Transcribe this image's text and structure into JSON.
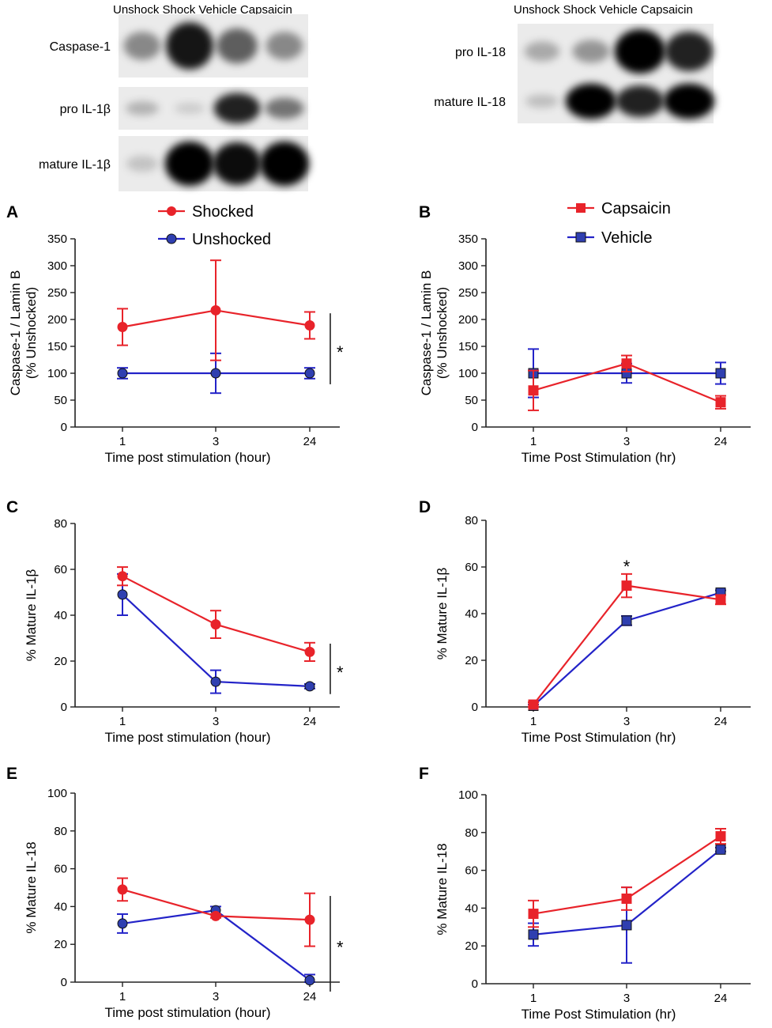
{
  "blots": {
    "left": {
      "lanes": "Unshock Shock  Vehicle Capsaicin",
      "rows": [
        {
          "label": "Caspase-1",
          "bands": [
            0.35,
            0.9,
            0.55,
            0.35
          ]
        },
        {
          "label": "pro IL-1β",
          "bands": [
            0.15,
            0.03,
            0.85,
            0.45
          ]
        },
        {
          "label": "mature IL-1β",
          "bands": [
            0.08,
            1.0,
            0.95,
            1.0
          ]
        }
      ]
    },
    "right": {
      "lanes": "Unshock Shock  Vehicle Capsaicin",
      "rows": [
        {
          "label": "pro IL-18",
          "bands": [
            0.2,
            0.3,
            1.0,
            0.85
          ]
        },
        {
          "label": "mature IL-18",
          "bands": [
            0.1,
            1.0,
            0.85,
            1.0
          ]
        }
      ]
    }
  },
  "colors": {
    "red": "#e8232a",
    "blue": "#2323c8",
    "marker_fill_blue": "#2f3fb0"
  },
  "chart_data": [
    {
      "panel": "A",
      "type": "line",
      "xlabel": "Time post stimulation (hour)",
      "ylabel": "Caspase-1 / Lamin B",
      "ylabel2": "(% Unshocked)",
      "categories": [
        "1",
        "3",
        "24"
      ],
      "ylim": [
        0,
        350
      ],
      "yticks": [
        "0",
        "50",
        "100",
        "150",
        "200",
        "250",
        "300",
        "350"
      ],
      "marker": "circle",
      "legend": [
        "Shocked",
        "Unshocked"
      ],
      "series": [
        {
          "name": "Shocked",
          "color": "red",
          "values": [
            186,
            217,
            189
          ],
          "errors": [
            34,
            93,
            25
          ]
        },
        {
          "name": "Unshocked",
          "color": "blue",
          "values": [
            100,
            100,
            100
          ],
          "errors": [
            10,
            37,
            10
          ]
        }
      ],
      "significance": "*"
    },
    {
      "panel": "B",
      "type": "line",
      "xlabel": "Time Post Stimulation (hr)",
      "ylabel": "Caspase-1 / Lamin B",
      "ylabel2": "(% Unshocked)",
      "categories": [
        "1",
        "3",
        "24"
      ],
      "ylim": [
        0,
        350
      ],
      "yticks": [
        "0",
        "50",
        "100",
        "150",
        "200",
        "250",
        "300",
        "350"
      ],
      "marker": "square",
      "legend": [
        "Capsaicin",
        "Vehicle"
      ],
      "series": [
        {
          "name": "Capsaicin",
          "color": "red",
          "values": [
            68,
            118,
            46
          ],
          "errors": [
            37,
            15,
            12
          ]
        },
        {
          "name": "Vehicle",
          "color": "blue",
          "values": [
            100,
            100,
            100
          ],
          "errors": [
            45,
            18,
            20
          ]
        }
      ]
    },
    {
      "panel": "C",
      "type": "line",
      "xlabel": "Time post stimulation (hour)",
      "ylabel": "% Mature IL-1β",
      "categories": [
        "1",
        "3",
        "24"
      ],
      "ylim": [
        0,
        80
      ],
      "yticks": [
        "0",
        "20",
        "40",
        "60",
        "80"
      ],
      "marker": "circle",
      "series": [
        {
          "name": "Shocked",
          "color": "red",
          "values": [
            57,
            36,
            24
          ],
          "errors": [
            4,
            6,
            4
          ]
        },
        {
          "name": "Unshocked",
          "color": "blue",
          "values": [
            49,
            11,
            9
          ],
          "errors": [
            9,
            5,
            1
          ]
        }
      ],
      "significance": "*"
    },
    {
      "panel": "D",
      "type": "line",
      "xlabel": "Time Post Stimulation (hr)",
      "ylabel": "% Mature IL-1β",
      "categories": [
        "1",
        "3",
        "24"
      ],
      "ylim": [
        0,
        80
      ],
      "yticks": [
        "0",
        "20",
        "40",
        "60",
        "80"
      ],
      "marker": "square",
      "series": [
        {
          "name": "Capsaicin",
          "color": "red",
          "values": [
            1,
            52,
            46
          ],
          "errors": [
            1,
            5,
            2
          ]
        },
        {
          "name": "Vehicle",
          "color": "blue",
          "values": [
            0.5,
            37,
            49
          ],
          "errors": [
            0.5,
            2,
            1
          ]
        }
      ],
      "point_star": "*"
    },
    {
      "panel": "E",
      "type": "line",
      "xlabel": "Time post stimulation (hour)",
      "ylabel": "% Mature IL-18",
      "categories": [
        "1",
        "3",
        "24"
      ],
      "ylim": [
        0,
        100
      ],
      "yticks": [
        "0",
        "20",
        "40",
        "60",
        "80",
        "100"
      ],
      "marker": "circle",
      "series": [
        {
          "name": "Shocked",
          "color": "red",
          "values": [
            49,
            35,
            33
          ],
          "errors": [
            6,
            1,
            14
          ]
        },
        {
          "name": "Unshocked",
          "color": "blue",
          "values": [
            31,
            38,
            1
          ],
          "errors": [
            5,
            2,
            3
          ]
        }
      ],
      "significance": "*"
    },
    {
      "panel": "F",
      "type": "line",
      "xlabel": "Time Post Stimulation (hr)",
      "ylabel": "% Mature IL-18",
      "categories": [
        "1",
        "3",
        "24"
      ],
      "ylim": [
        0,
        100
      ],
      "yticks": [
        "0",
        "20",
        "40",
        "60",
        "80",
        "100"
      ],
      "marker": "square",
      "series": [
        {
          "name": "Capsaicin",
          "color": "red",
          "values": [
            37,
            45,
            78
          ],
          "errors": [
            7,
            6,
            4
          ]
        },
        {
          "name": "Vehicle",
          "color": "blue",
          "values": [
            26,
            31,
            71
          ],
          "errors": [
            6,
            20,
            1
          ]
        }
      ]
    }
  ]
}
